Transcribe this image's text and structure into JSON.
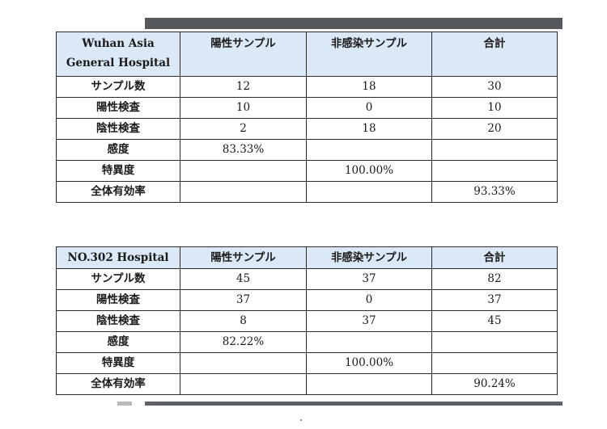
{
  "tables": [
    {
      "hospital_line1": "Wuhan Asia",
      "hospital_line2": "General Hospital",
      "headers": [
        "陽性サンプル",
        "非感染サンプル",
        "合計"
      ],
      "rows": [
        {
          "label": "サンプル数",
          "cells": [
            "12",
            "18",
            "30"
          ]
        },
        {
          "label": "陽性検査",
          "cells": [
            "10",
            "0",
            "10"
          ]
        },
        {
          "label": "陰性検査",
          "cells": [
            "2",
            "18",
            "20"
          ]
        },
        {
          "label": "感度",
          "cells": [
            "83.33%",
            "",
            ""
          ]
        },
        {
          "label": "特異度",
          "cells": [
            "",
            "100.00%",
            ""
          ]
        },
        {
          "label": "全体有効率",
          "cells": [
            "",
            "",
            "93.33%"
          ]
        }
      ]
    },
    {
      "hospital_line1": "NO.302 Hospital",
      "headers": [
        "陽性サンプル",
        "非感染サンプル",
        "合計"
      ],
      "rows": [
        {
          "label": "サンプル数",
          "cells": [
            "45",
            "37",
            "82"
          ]
        },
        {
          "label": "陽性検査",
          "cells": [
            "37",
            "0",
            "37"
          ]
        },
        {
          "label": "陰性検査",
          "cells": [
            "8",
            "37",
            "45"
          ]
        },
        {
          "label": "感度",
          "cells": [
            "82.22%",
            "",
            ""
          ]
        },
        {
          "label": "特異度",
          "cells": [
            "",
            "100.00%",
            ""
          ]
        },
        {
          "label": "全体有効率",
          "cells": [
            "",
            "",
            "90.24%"
          ]
        }
      ]
    }
  ],
  "colors": {
    "header_bg": "#dbe9f7",
    "border": "#2b2b2b",
    "bar": "#55595e"
  }
}
